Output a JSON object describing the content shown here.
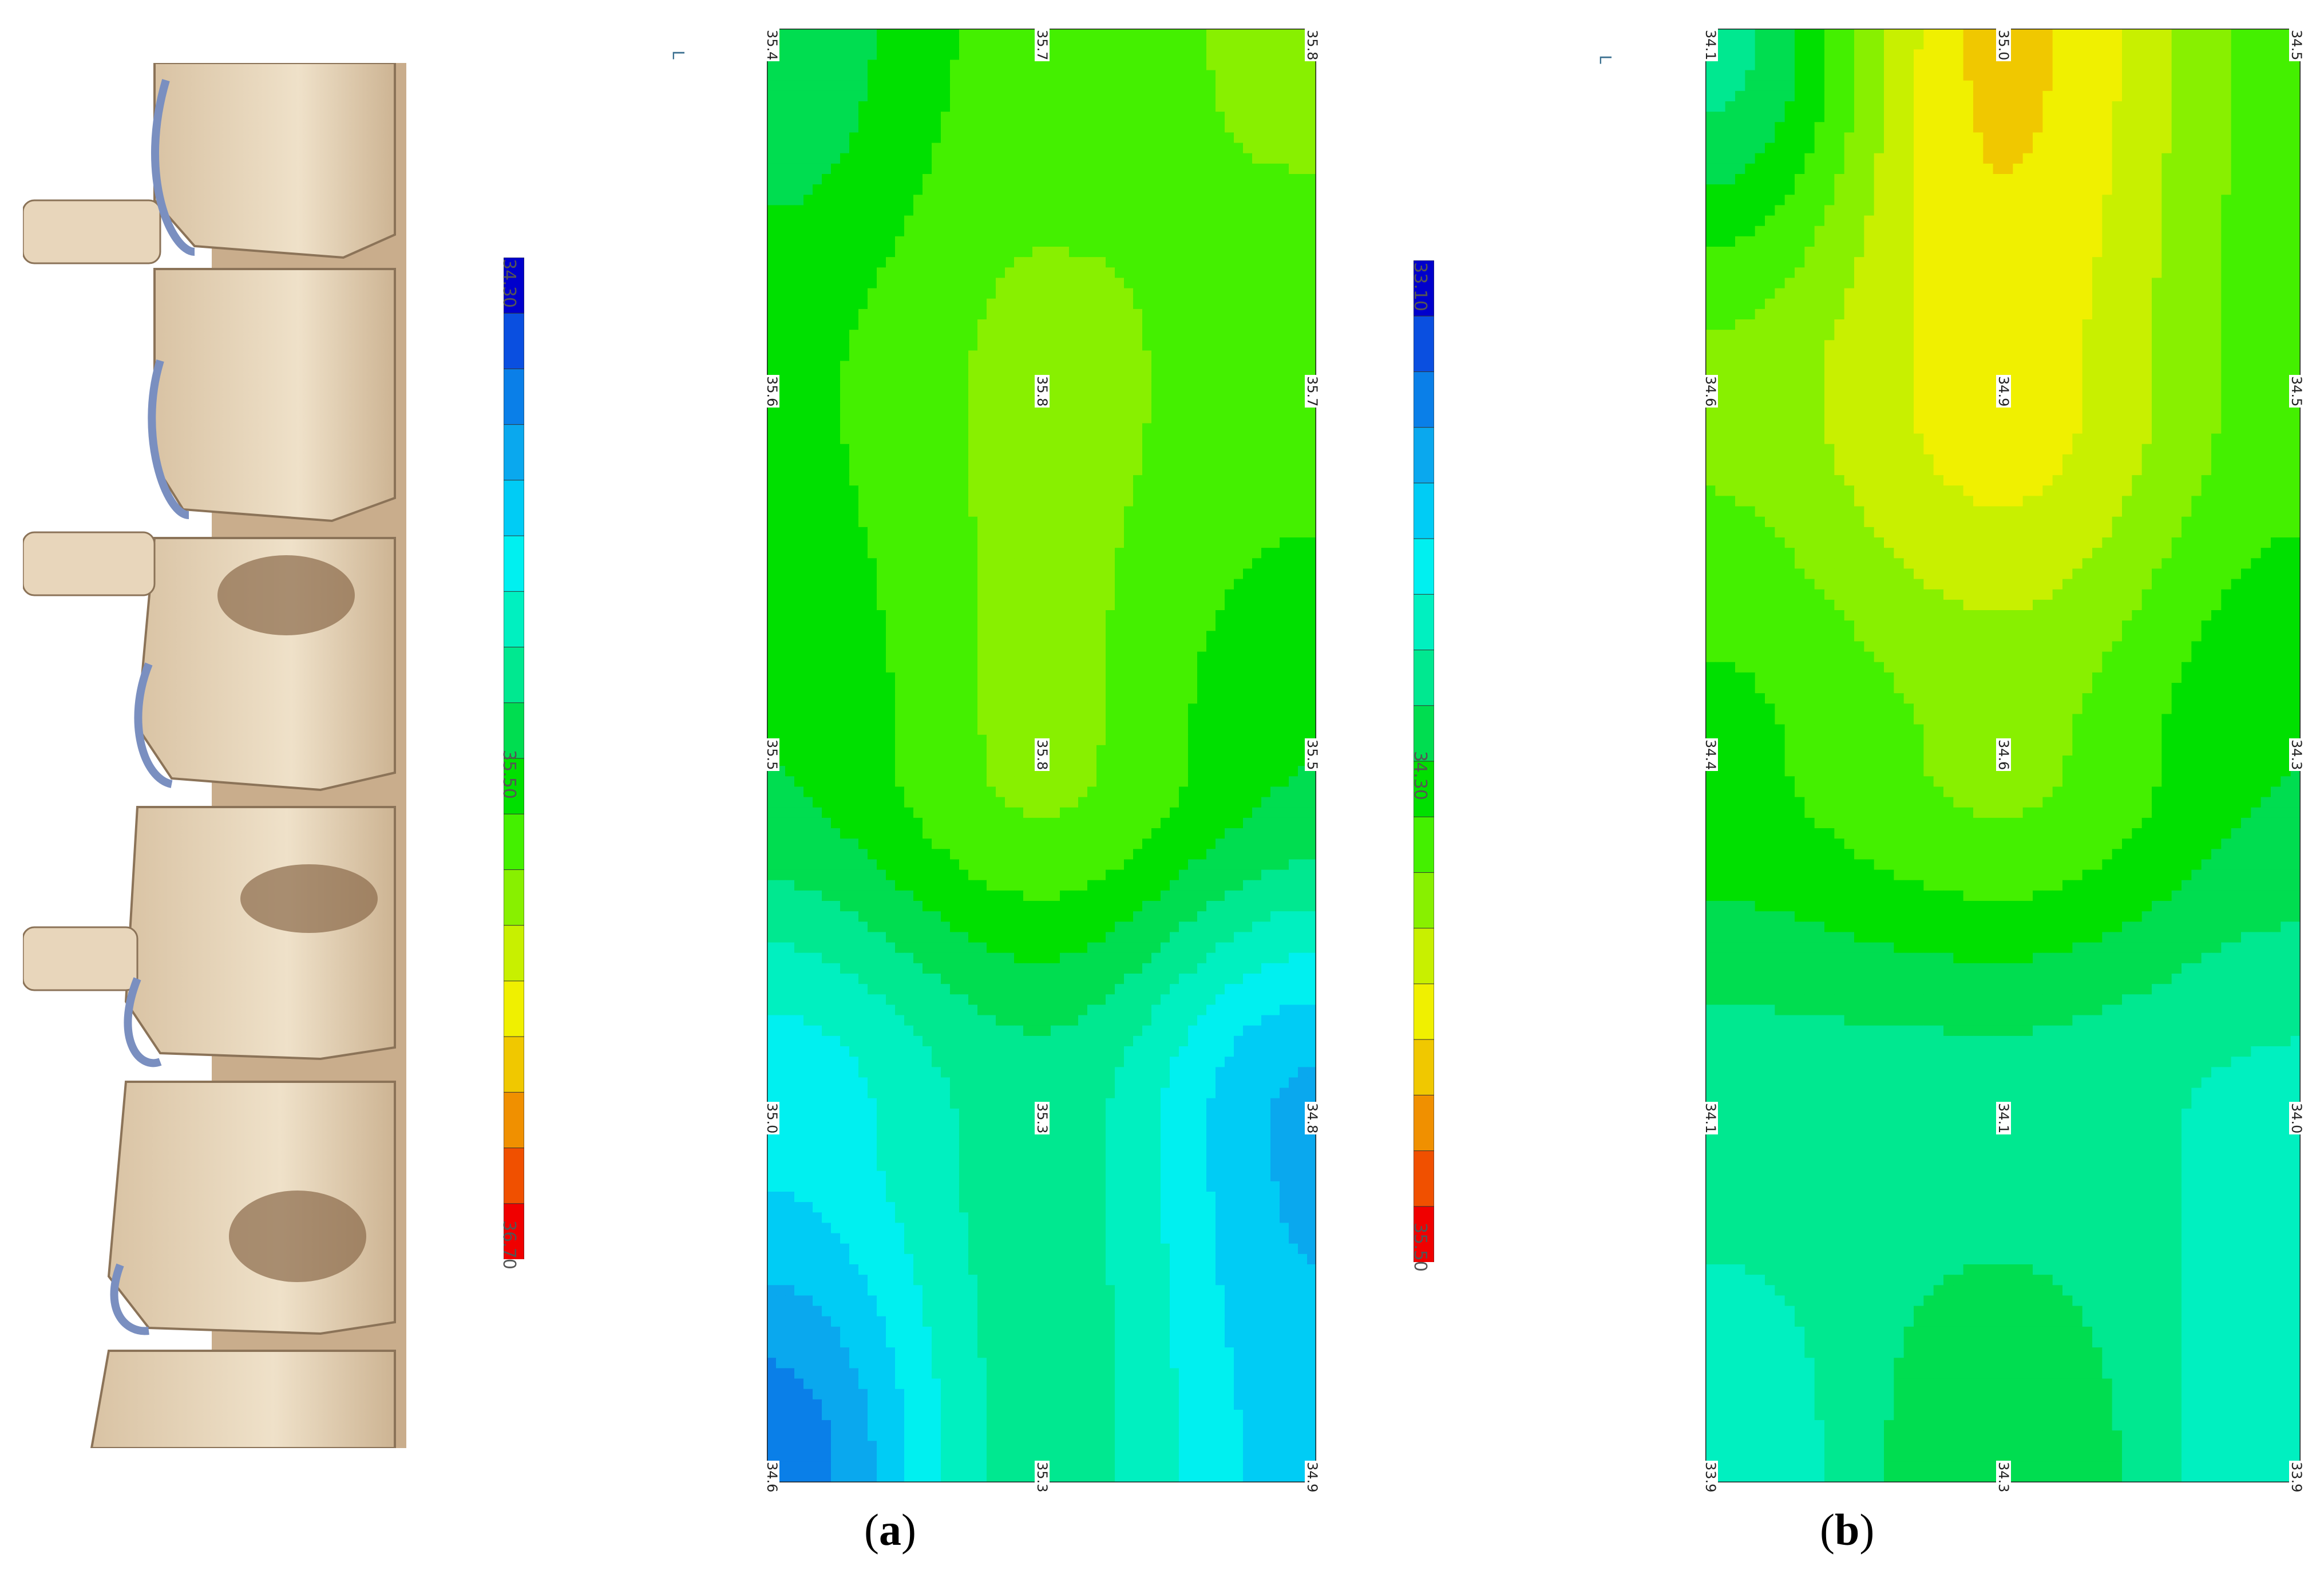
{
  "figure": {
    "panel_a_label": "a",
    "panel_b_label": "b",
    "panel_a_corner": "L",
    "panel_b_corner": "L"
  },
  "chart_data": [
    {
      "type": "heatmap",
      "panel": "a",
      "colorbar": {
        "min_label": "34.30",
        "mid_label": "35.50",
        "max_label": "36.70",
        "range": [
          34.3,
          36.7
        ]
      },
      "grid": {
        "rows": 5,
        "cols": 3,
        "values": [
          [
            35.4,
            35.7,
            35.8
          ],
          [
            35.6,
            35.8,
            35.7
          ],
          [
            35.5,
            35.8,
            35.5
          ],
          [
            35.0,
            35.3,
            34.8
          ],
          [
            34.6,
            35.3,
            34.9
          ]
        ],
        "labels": [
          [
            "35.4",
            "35.7",
            "35.8"
          ],
          [
            "35.6",
            "35.8",
            "35.7"
          ],
          [
            "35.5",
            "35.8",
            "35.5"
          ],
          [
            "35.0",
            "35.3",
            "34.8"
          ],
          [
            "34.6",
            "35.3",
            "34.9"
          ]
        ]
      }
    },
    {
      "type": "heatmap",
      "panel": "b",
      "colorbar": {
        "min_label": "33.10",
        "mid_label": "34.30",
        "max_label": "35.50",
        "range": [
          33.1,
          35.5
        ]
      },
      "grid": {
        "rows": 5,
        "cols": 3,
        "values": [
          [
            34.1,
            35.0,
            34.5
          ],
          [
            34.6,
            34.9,
            34.5
          ],
          [
            34.4,
            34.6,
            34.3
          ],
          [
            34.1,
            34.1,
            34.0
          ],
          [
            33.9,
            34.3,
            33.9
          ]
        ],
        "labels": [
          [
            "34.1",
            "35.0",
            "34.5"
          ],
          [
            "34.6",
            "34.9",
            "34.5"
          ],
          [
            "34.4",
            "34.6",
            "34.3"
          ],
          [
            "34.1",
            "34.1",
            "34.0"
          ],
          [
            "33.9",
            "34.3",
            "33.9"
          ]
        ]
      }
    }
  ],
  "colors": {
    "scale": [
      "#0000cc",
      "#0a4fe0",
      "#0a7fe8",
      "#0aa8ee",
      "#00ccf5",
      "#00f0f0",
      "#00f0c0",
      "#00e890",
      "#00dd50",
      "#00e000",
      "#44f000",
      "#88f000",
      "#c8f000",
      "#f0f000",
      "#f0c800",
      "#f09000",
      "#f05000",
      "#f00000"
    ]
  }
}
